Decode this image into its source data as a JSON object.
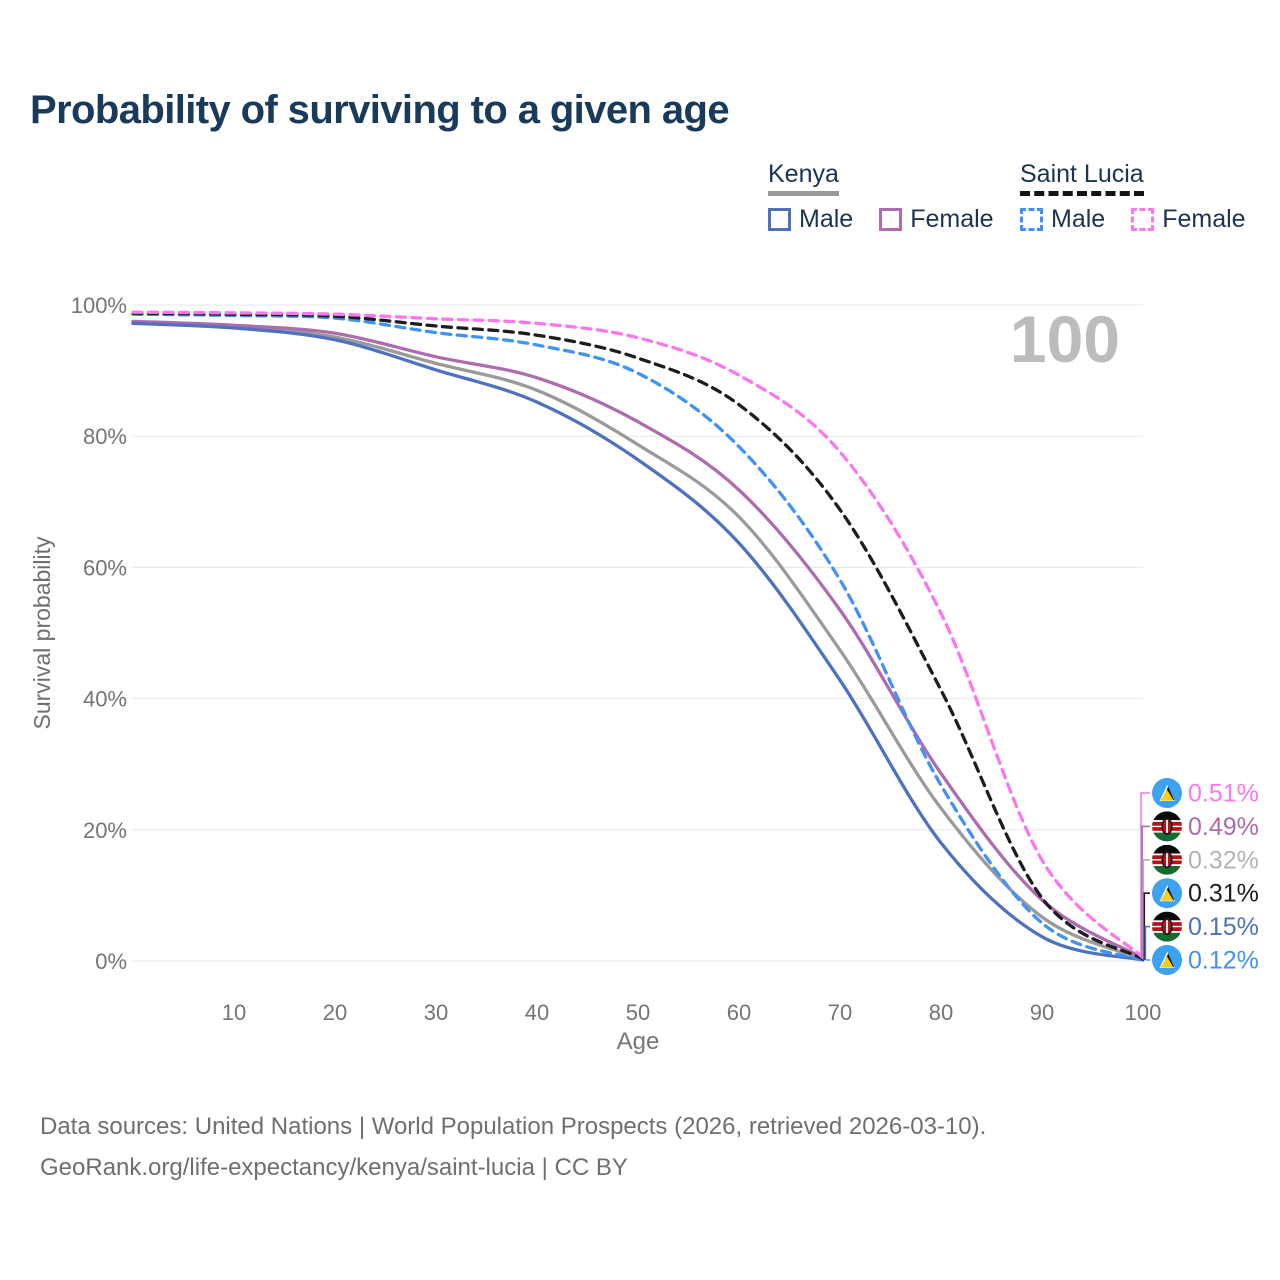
{
  "header": {
    "title": "Probability of surviving to a given age"
  },
  "legend": {
    "groups": [
      {
        "label": "Kenya",
        "line_style": "solid",
        "underline_color": "#9a9a9a",
        "items": [
          {
            "label": "Male",
            "color": "#4f72bd",
            "dashed": false
          },
          {
            "label": "Female",
            "color": "#ad6bb0",
            "dashed": false
          }
        ]
      },
      {
        "label": "Saint Lucia",
        "line_style": "dashed",
        "underline_color": "#141414",
        "items": [
          {
            "label": "Male",
            "color": "#4192f5",
            "dashed": true
          },
          {
            "label": "Female",
            "color": "#fb78ec",
            "dashed": true
          }
        ]
      }
    ]
  },
  "chart_data": {
    "type": "line",
    "title": "Probability of surviving to a given age",
    "xlabel": "Age",
    "ylabel": "Survival probability",
    "watermark": "100",
    "x": [
      0,
      10,
      20,
      30,
      40,
      50,
      60,
      70,
      80,
      90,
      100
    ],
    "xlim": [
      0,
      100
    ],
    "ylim": [
      0,
      100
    ],
    "grid": true,
    "xticks": [
      "10",
      "20",
      "30",
      "40",
      "50",
      "60",
      "70",
      "80",
      "90",
      "100"
    ],
    "yticks": [
      "0%",
      "20%",
      "40%",
      "60%",
      "80%",
      "100%"
    ],
    "series": [
      {
        "name": "Kenya",
        "sex": "both",
        "color": "#9a9a9a",
        "dash": false,
        "values": [
          97.35,
          96.7,
          95.1,
          91.1,
          87.0,
          78.7,
          67.7,
          47.4,
          23.3,
          6.7,
          0.32
        ]
      },
      {
        "name": "Kenya",
        "sex": "female",
        "color": "#ad6bb0",
        "dash": false,
        "values": [
          97.5,
          96.9,
          95.7,
          92.1,
          88.9,
          82.2,
          71.8,
          53.5,
          28.6,
          9.3,
          0.49
        ]
      },
      {
        "name": "Kenya",
        "sex": "male",
        "color": "#4f72bd",
        "dash": false,
        "values": [
          97.2,
          96.5,
          94.7,
          90.1,
          85.2,
          76.4,
          63.7,
          42.8,
          18.0,
          3.7,
          0.15
        ]
      },
      {
        "name": "Saint Lucia",
        "sex": "male",
        "color": "#4192f5",
        "dash": true,
        "values": [
          98.6,
          98.4,
          98.0,
          95.8,
          93.9,
          89.6,
          78.4,
          58.1,
          26.8,
          5.8,
          0.12
        ]
      },
      {
        "name": "Saint Lucia",
        "sex": "both",
        "color": "#1d1d1d",
        "dash": true,
        "values": [
          98.75,
          98.6,
          98.3,
          96.8,
          95.4,
          91.9,
          84.8,
          68.8,
          41.3,
          9.6,
          0.31
        ]
      },
      {
        "name": "Saint Lucia",
        "sex": "female",
        "color": "#fb78ec",
        "dash": true,
        "values": [
          98.9,
          98.8,
          98.6,
          97.9,
          97.2,
          95.0,
          89.3,
          77.6,
          53.0,
          15.4,
          0.51
        ]
      }
    ],
    "end_labels": [
      {
        "value": "0.51%",
        "color": "#fb78ec",
        "flag": "saint-lucia"
      },
      {
        "value": "0.49%",
        "color": "#ad6bb0",
        "flag": "kenya"
      },
      {
        "value": "0.32%",
        "color": "#b3b3b3",
        "flag": "kenya"
      },
      {
        "value": "0.31%",
        "color": "#1d1d1d",
        "flag": "saint-lucia"
      },
      {
        "value": "0.15%",
        "color": "#4f72bd",
        "flag": "kenya"
      },
      {
        "value": "0.12%",
        "color": "#4192f5",
        "flag": "saint-lucia"
      }
    ]
  },
  "footer": {
    "line1": "Data sources: United Nations | World Population Prospects (2026, retrieved 2026-03-10).",
    "line2": "GeoRank.org/life-expectancy/kenya/saint-lucia | CC BY"
  }
}
